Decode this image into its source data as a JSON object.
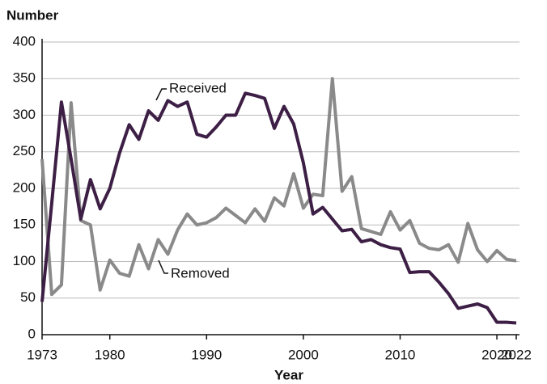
{
  "chart_data": {
    "type": "line",
    "y_label": "Number",
    "x_label": "Year",
    "x": [
      1973,
      1974,
      1975,
      1976,
      1977,
      1978,
      1979,
      1980,
      1981,
      1982,
      1983,
      1984,
      1985,
      1986,
      1987,
      1988,
      1989,
      1990,
      1991,
      1992,
      1993,
      1994,
      1995,
      1996,
      1997,
      1998,
      1999,
      2000,
      2001,
      2002,
      2003,
      2004,
      2005,
      2006,
      2007,
      2008,
      2009,
      2010,
      2011,
      2012,
      2013,
      2014,
      2015,
      2016,
      2017,
      2018,
      2019,
      2020,
      2021,
      2022
    ],
    "series": [
      {
        "name": "Received",
        "color": "#3d1f45",
        "values": [
          45,
          180,
          318,
          240,
          158,
          212,
          172,
          200,
          248,
          287,
          267,
          306,
          293,
          320,
          312,
          318,
          274,
          270,
          284,
          300,
          300,
          330,
          327,
          323,
          282,
          312,
          288,
          235,
          165,
          174,
          158,
          142,
          144,
          127,
          130,
          123,
          119,
          117,
          85,
          86,
          86,
          72,
          56,
          36,
          39,
          42,
          37,
          17,
          17,
          16
        ]
      },
      {
        "name": "Removed",
        "color": "#8a8a8a",
        "values": [
          240,
          55,
          68,
          317,
          156,
          150,
          61,
          102,
          84,
          80,
          123,
          90,
          130,
          110,
          143,
          165,
          150,
          153,
          160,
          173,
          163,
          153,
          172,
          155,
          187,
          176,
          220,
          173,
          192,
          190,
          350,
          196,
          216,
          145,
          141,
          137,
          168,
          143,
          156,
          125,
          118,
          116,
          123,
          99,
          152,
          116,
          100,
          115,
          103,
          101
        ]
      }
    ],
    "xlim": [
      1973,
      2022
    ],
    "xticks": [
      1973,
      1980,
      1990,
      2000,
      2010,
      2020,
      2022
    ],
    "ylim": [
      0,
      400
    ],
    "yticks": [
      0,
      50,
      100,
      150,
      200,
      250,
      300,
      350,
      400
    ],
    "grid": true
  }
}
